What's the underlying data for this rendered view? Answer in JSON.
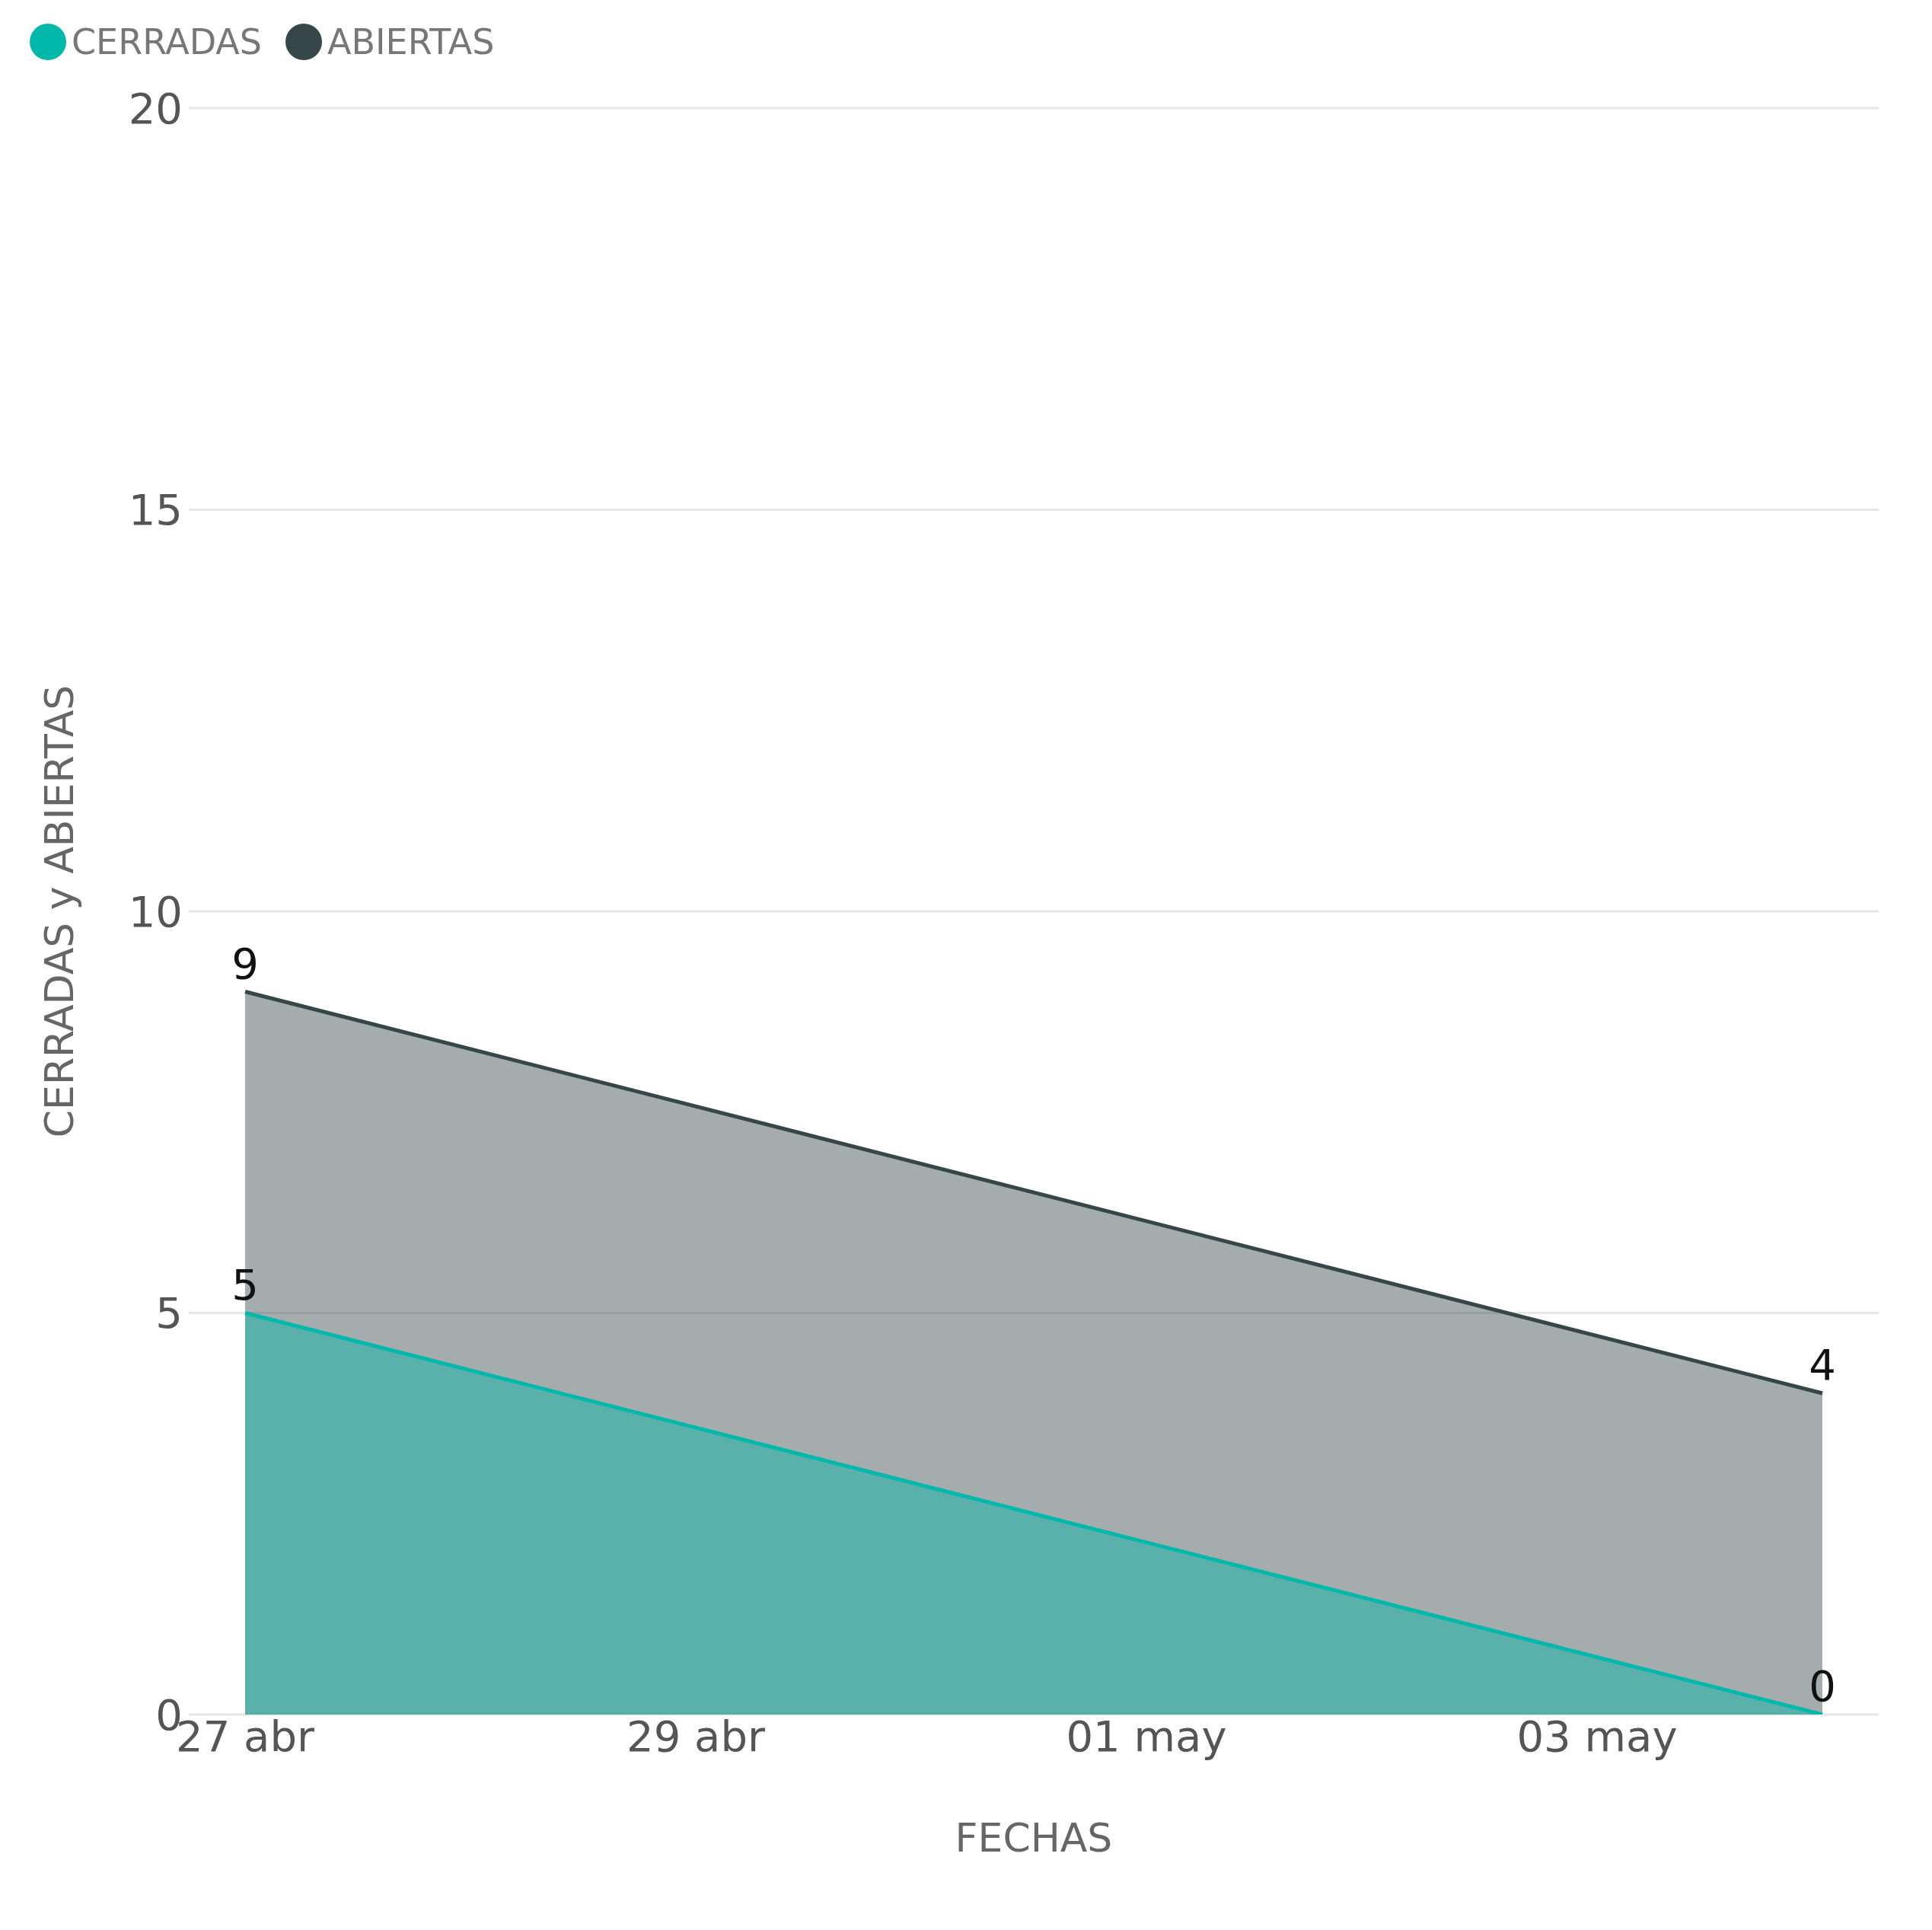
{
  "chart_data": {
    "type": "area",
    "xlabel": "FECHAS",
    "ylabel": "CERRADAS y ABIERTAS",
    "x": [
      "--04-27",
      "--05-04"
    ],
    "series": [
      {
        "name": "CERRADAS",
        "color": "#01b8aa",
        "values": [
          5,
          0
        ]
      },
      {
        "name": "ABIERTAS",
        "color": "#374649",
        "values": [
          9,
          4
        ]
      }
    ],
    "xlim": [
      "--04-26T18:00",
      "--05-04T06:00"
    ],
    "xticks": [
      {
        "value": "--04-27",
        "label": "27 abr"
      },
      {
        "value": "--04-29",
        "label": "29 abr"
      },
      {
        "value": "--05-01",
        "label": "01 may"
      },
      {
        "value": "--05-03",
        "label": "03 may"
      }
    ],
    "ylim": [
      0,
      20
    ],
    "yticks": [
      0,
      5,
      10,
      15,
      20
    ],
    "grid": "y",
    "legend": "top left",
    "data_labels": true,
    "marker": "none",
    "line_style": "solid"
  }
}
